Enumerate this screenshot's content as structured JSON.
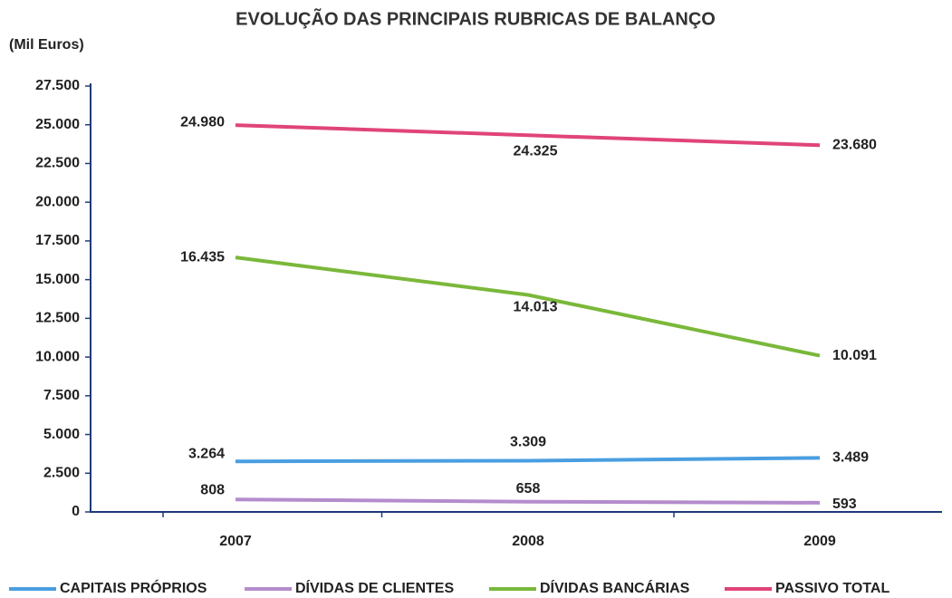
{
  "chart_data": {
    "type": "line",
    "title": "EVOLUÇÃO DAS PRINCIPAIS RUBRICAS DE BALANÇO",
    "y_label": "(Mil Euros)",
    "categories": [
      "2007",
      "2008",
      "2009"
    ],
    "series": [
      {
        "name": "CAPITAIS PRÓPRIOS",
        "color": "#4a9ee0",
        "values": [
          3264,
          3309,
          3489
        ],
        "value_labels": [
          "3.264",
          "3.309",
          "3.489"
        ]
      },
      {
        "name": "DÍVIDAS DE CLIENTES",
        "color": "#b48ccc",
        "values": [
          808,
          658,
          593
        ]
      },
      {
        "name": "DÍVIDAS BANCÁRIAS",
        "color": "#7ab83a",
        "values": [
          16435,
          14013,
          10091
        ],
        "value_labels": [
          "16.435",
          "14.013",
          "10.091"
        ]
      },
      {
        "name": "PASSIVO TOTAL",
        "color": "#e0447a",
        "values": [
          24980,
          24325,
          23680
        ],
        "value_labels": [
          "24.980",
          "24.325",
          "23.680"
        ]
      }
    ],
    "ylim": [
      0,
      27500
    ],
    "yticks": [
      0,
      {
        "value": 2500,
        "label": "2.500"
      },
      {
        "value": 5000,
        "label": "5.000"
      },
      {
        "value": 7500,
        "label": "7.500"
      },
      {
        "value": 10000,
        "label": "10.000"
      },
      {
        "value": 12500,
        "label": "12.500"
      },
      {
        "value": 15000,
        "label": "15.000"
      },
      {
        "value": 17500,
        "label": "17.500"
      },
      {
        "value": 20000,
        "label": "20.000"
      },
      {
        "value": 22500,
        "label": "22.500"
      },
      {
        "value": 25000,
        "label": "25.000"
      },
      {
        "value": 27500,
        "label": "27.500"
      }
    ],
    "grid": false,
    "legend": "bottom"
  }
}
